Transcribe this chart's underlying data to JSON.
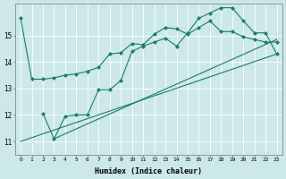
{
  "xlabel": "Humidex (Indice chaleur)",
  "ylabel": "",
  "bg_color": "#cce8e8",
  "grid_color": "#ffffff",
  "line_color": "#1a7a6e",
  "xmin": -0.5,
  "xmax": 23.5,
  "ymin": 10.5,
  "ymax": 16.2,
  "yticks": [
    11,
    12,
    13,
    14,
    15
  ],
  "xticks": [
    0,
    1,
    2,
    3,
    4,
    5,
    6,
    7,
    8,
    9,
    10,
    11,
    12,
    13,
    14,
    15,
    16,
    17,
    18,
    19,
    20,
    21,
    22,
    23
  ],
  "line1_x": [
    0,
    1,
    2,
    3,
    4,
    5,
    6,
    7,
    8,
    9,
    10,
    11,
    12,
    13,
    14,
    15,
    16,
    17,
    18,
    19,
    20,
    21,
    22,
    23
  ],
  "line1_y": [
    15.65,
    13.35,
    13.35,
    13.4,
    13.5,
    13.55,
    13.65,
    13.8,
    14.3,
    14.35,
    14.7,
    14.65,
    15.05,
    15.3,
    15.25,
    15.05,
    15.3,
    15.55,
    15.15,
    15.15,
    14.95,
    14.85,
    14.75,
    14.75
  ],
  "line2_x": [
    2,
    3,
    4,
    5,
    6,
    7,
    8,
    9,
    10,
    11,
    12,
    13,
    14,
    15,
    16,
    17,
    18,
    19,
    20,
    21,
    22,
    23
  ],
  "line2_y": [
    12.05,
    11.1,
    11.95,
    12.0,
    12.0,
    12.95,
    12.95,
    13.3,
    14.4,
    14.6,
    14.75,
    14.9,
    14.6,
    15.1,
    15.65,
    15.85,
    16.05,
    16.05,
    15.55,
    15.1,
    15.1,
    14.3
  ],
  "line3_x": [
    3,
    23
  ],
  "line3_y": [
    11.1,
    14.85
  ],
  "line4_x": [
    0,
    23
  ],
  "line4_y": [
    11.0,
    14.3
  ]
}
